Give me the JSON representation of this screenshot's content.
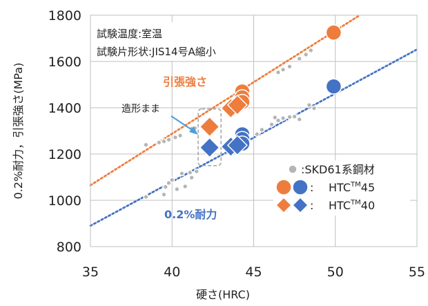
{
  "chart_data": {
    "type": "scatter",
    "xlabel": "硬さ(HRC)",
    "ylabel": "0.2%耐力，引張強さ(MPa)",
    "xlim": [
      35,
      55
    ],
    "ylim": [
      800,
      1800
    ],
    "xticks": [
      35,
      40,
      45,
      50,
      55
    ],
    "yticks": [
      800,
      1000,
      1200,
      1400,
      1600,
      1800
    ],
    "grid": true,
    "conditions": [
      "試験温度:室温",
      "試験片形状:JIS14号A縮小"
    ],
    "annotations": {
      "tensile_label": "引張強さ",
      "yield_label": "0.2%耐力",
      "as_built_label": "造形まま"
    },
    "legend": {
      "placement": "bottom-right",
      "entries": [
        {
          "label": ":SKD61系鋼材",
          "marker": "circle",
          "colors": [
            "#b5b5b5"
          ]
        },
        {
          "label": ":",
          "tm_label": [
            "HTC",
            "TM",
            "45"
          ],
          "marker": "circle",
          "colors": [
            "#ee7d3d",
            "#4472c4"
          ]
        },
        {
          "label": ":",
          "tm_label": [
            "HTC",
            "TM",
            "40"
          ],
          "marker": "diamond",
          "colors": [
            "#ee7d3d",
            "#4472c4"
          ]
        }
      ]
    },
    "colors": {
      "tensile": "#ee7d3d",
      "yield": "#4472c4",
      "skd61": "#b5b5b5",
      "grid": "#bfbfbf",
      "box": "#a6a6a6"
    },
    "trendlines": [
      {
        "name": "tensile-trend",
        "color": "#ee7d3d",
        "from": [
          35,
          1065
        ],
        "to": [
          51.5,
          1800
        ]
      },
      {
        "name": "yield-trend",
        "color": "#4472c4",
        "from": [
          35,
          890
        ],
        "to": [
          55,
          1652
        ]
      }
    ],
    "series": [
      {
        "name": ":SKD61系鋼材",
        "marker": "circle",
        "color": "#b5b5b5",
        "points": [
          [
            38.4,
            1240
          ],
          [
            39.2,
            1250
          ],
          [
            39.5,
            1255
          ],
          [
            39.8,
            1262
          ],
          [
            40.2,
            1272
          ],
          [
            40.5,
            1280
          ],
          [
            41.2,
            1310
          ],
          [
            41.4,
            1312
          ],
          [
            44.3,
            1440
          ],
          [
            44.6,
            1455
          ],
          [
            46.5,
            1553
          ],
          [
            46.8,
            1565
          ],
          [
            47.2,
            1578
          ],
          [
            47.8,
            1612
          ],
          [
            48.2,
            1630
          ],
          [
            48.5,
            1648
          ],
          [
            38.4,
            1015
          ],
          [
            39.5,
            1025
          ],
          [
            40.3,
            1048
          ],
          [
            40.8,
            1060
          ],
          [
            41.2,
            1098
          ],
          [
            41.5,
            1125
          ],
          [
            43.8,
            1230
          ],
          [
            45.5,
            1305
          ],
          [
            46.5,
            1345
          ],
          [
            46.8,
            1355
          ],
          [
            47.2,
            1360
          ],
          [
            47.5,
            1362
          ],
          [
            47.8,
            1350
          ],
          [
            48.4,
            1412
          ],
          [
            48.7,
            1398
          ],
          [
            50.0,
            1495
          ],
          [
            39.6,
            1058
          ],
          [
            39.8,
            1075
          ],
          [
            40.0,
            1088
          ],
          [
            40.6,
            1116
          ],
          [
            41.1,
            1120
          ],
          [
            46.3,
            1358
          ],
          [
            46.1,
            1328
          ],
          [
            45.2,
            1286
          ],
          [
            50.0,
            1730
          ],
          [
            43.7,
            1403
          ],
          [
            44.2,
            1452
          ]
        ]
      },
      {
        "name": "HTC45 引張強さ",
        "marker": "circle",
        "color": "#ee7d3d",
        "points": [
          [
            44.3,
            1470
          ],
          [
            44.3,
            1445
          ],
          [
            44.3,
            1425
          ],
          [
            49.9,
            1725
          ]
        ]
      },
      {
        "name": "HTC45 0.2%耐力",
        "marker": "circle",
        "color": "#4472c4",
        "points": [
          [
            44.3,
            1285
          ],
          [
            44.3,
            1265
          ],
          [
            44.3,
            1245
          ],
          [
            49.9,
            1492
          ]
        ]
      },
      {
        "name": "HTC40 引張強さ",
        "marker": "diamond",
        "color": "#ee7d3d",
        "points": [
          [
            42.3,
            1318
          ],
          [
            43.6,
            1398
          ],
          [
            44.0,
            1412
          ]
        ]
      },
      {
        "name": "HTC40 0.2%耐力",
        "marker": "diamond",
        "color": "#4472c4",
        "points": [
          [
            42.3,
            1228
          ],
          [
            43.6,
            1232
          ],
          [
            44.0,
            1238
          ]
        ]
      }
    ],
    "as_built_box": {
      "x": [
        41.6,
        43.0
      ],
      "y": [
        1150,
        1395
      ]
    }
  }
}
